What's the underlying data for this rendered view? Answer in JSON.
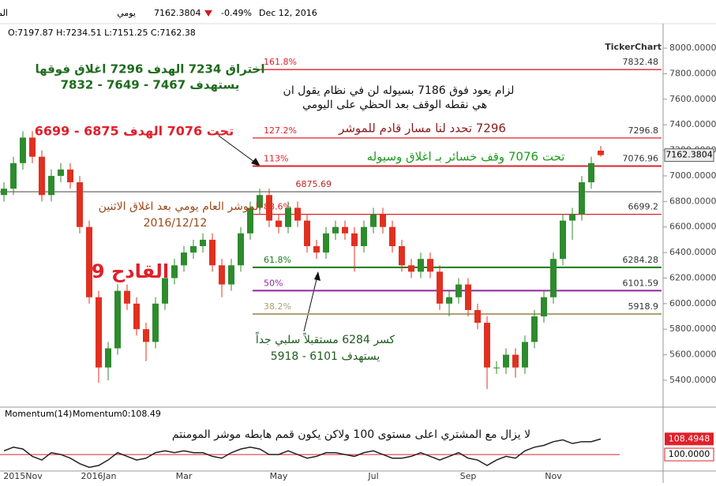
{
  "header": {
    "title": "المؤشر العام للسوق السعودي (TASI)",
    "period": "يومي",
    "last": "7162.3804",
    "change": "-0.49%",
    "date": "Dec 12, 2016",
    "ohlc": "O:7197.87 H:7234.51 L:7151.25 C:7162.38"
  },
  "brand": "TickerChart",
  "chart_data": [
    {
      "type": "candlestick",
      "categories": [
        null,
        null,
        "2015Nov",
        null,
        null,
        null,
        null,
        null,
        null,
        null,
        "2016Jan",
        null,
        null,
        null,
        null,
        null,
        null,
        null,
        null,
        "Mar",
        null,
        null,
        null,
        null,
        null,
        null,
        null,
        null,
        null,
        "May",
        null,
        null,
        null,
        null,
        null,
        null,
        null,
        null,
        null,
        "Jul",
        null,
        null,
        null,
        null,
        null,
        null,
        null,
        null,
        null,
        "Sep",
        null,
        null,
        null,
        null,
        null,
        null,
        null,
        null,
        "Nov",
        null,
        null,
        null,
        null,
        null
      ],
      "open": [
        6850,
        6900,
        7100,
        7300,
        7150,
        6850,
        7000,
        7050,
        6950,
        6600,
        6050,
        5500,
        5650,
        6100,
        6000,
        5800,
        5700,
        6000,
        6200,
        6300,
        6400,
        6450,
        6500,
        6300,
        6150,
        6300,
        6550,
        6750,
        6850,
        6650,
        6600,
        6750,
        6650,
        6450,
        6400,
        6550,
        6600,
        6550,
        6450,
        6600,
        6700,
        6600,
        6450,
        6300,
        6250,
        6350,
        6250,
        6000,
        6050,
        6150,
        5950,
        5850,
        5500,
        5500,
        5600,
        5500,
        5700,
        5900,
        6050,
        6350,
        6650,
        6700,
        6950,
        7197.87
      ],
      "high": [
        6950,
        7150,
        7350,
        7350,
        7200,
        7050,
        7100,
        7100,
        7000,
        6650,
        6100,
        5700,
        6150,
        6150,
        6050,
        5850,
        6050,
        6250,
        6350,
        6450,
        6500,
        6550,
        6550,
        6350,
        6350,
        6600,
        6800,
        6900,
        6900,
        6700,
        6800,
        6800,
        6700,
        6500,
        6600,
        6650,
        6650,
        6600,
        6650,
        6750,
        6750,
        6650,
        6500,
        6350,
        6400,
        6400,
        6300,
        6100,
        6200,
        6200,
        6000,
        5900,
        5550,
        5650,
        5650,
        5750,
        5950,
        6100,
        6400,
        6700,
        6750,
        7000,
        7150,
        7234.51
      ],
      "low": [
        6800,
        6850,
        7050,
        7100,
        6800,
        6800,
        6950,
        6900,
        6550,
        6000,
        5380,
        5400,
        5600,
        5950,
        5750,
        5550,
        5650,
        5950,
        6150,
        6250,
        6350,
        6400,
        6250,
        6050,
        6100,
        6250,
        6500,
        6700,
        6600,
        6550,
        6550,
        6600,
        6400,
        6350,
        6350,
        6500,
        6500,
        6250,
        6400,
        6550,
        6550,
        6400,
        6250,
        6200,
        6200,
        6200,
        5950,
        5900,
        6000,
        5900,
        5800,
        5330,
        5450,
        5450,
        5420,
        5450,
        5650,
        5850,
        6000,
        6300,
        6500,
        6650,
        6900,
        7151.25
      ],
      "close": [
        6900,
        7100,
        7300,
        7150,
        6850,
        7000,
        7050,
        6950,
        6600,
        6050,
        5500,
        5650,
        6100,
        6000,
        5800,
        5700,
        6000,
        6200,
        6300,
        6400,
        6450,
        6500,
        6300,
        6150,
        6300,
        6550,
        6750,
        6850,
        6650,
        6600,
        6750,
        6650,
        6450,
        6400,
        6550,
        6600,
        6550,
        6450,
        6600,
        6700,
        6600,
        6450,
        6300,
        6250,
        6350,
        6250,
        6000,
        6050,
        6150,
        5950,
        5850,
        5500,
        5500,
        5600,
        5500,
        5700,
        5900,
        6050,
        6350,
        6650,
        6700,
        6950,
        7100,
        7162.38
      ],
      "up_color": "#2e8b2e",
      "down_color": "#e03020",
      "ylim": [
        5196,
        8130
      ],
      "yticks": [
        {
          "value": 5400,
          "label": "5400.0000"
        },
        {
          "value": 5600,
          "label": "5600.0000"
        },
        {
          "value": 5800,
          "label": "5800.0000"
        },
        {
          "value": 6000,
          "label": "6000.0000"
        },
        {
          "value": 6200,
          "label": "6200.0000"
        },
        {
          "value": 6400,
          "label": "6400.0000"
        },
        {
          "value": 6600,
          "label": "6600.0000"
        },
        {
          "value": 6800,
          "label": "6800.0000"
        },
        {
          "value": 7000,
          "label": "7000.0000"
        },
        {
          "value": 7200,
          "label": "7200.0000"
        },
        {
          "value": 7400,
          "label": "7400.0000"
        },
        {
          "value": 7600,
          "label": "7600.0000"
        },
        {
          "value": 7800,
          "label": "7800.0000"
        },
        {
          "value": 8000,
          "label": "8000.0000"
        }
      ],
      "price_tag": {
        "value": 7162.3804,
        "label": "7162.3804"
      },
      "levels": [
        {
          "name": "161.8%",
          "value": 7832.48,
          "label": "7832.48",
          "color": "#e0202a"
        },
        {
          "name": "127.2%",
          "value": 7296.8,
          "label": "7296.8",
          "color": "#e0202a"
        },
        {
          "name": "113%",
          "value": 7076.96,
          "label": "7076.96",
          "color": "#e0202a"
        },
        {
          "value": 6875.69,
          "label": "6875.69",
          "color": "#777777"
        },
        {
          "name": "88.6%",
          "value": 6699.2,
          "label": "6699.2",
          "color": "#e0202a"
        },
        {
          "name": "61.8%",
          "value": 6284.28,
          "label": "6284.28",
          "color": "#1a7a1a"
        },
        {
          "name": "50%",
          "value": 6101.59,
          "label": "6101.59",
          "color": "#8a2b9a"
        },
        {
          "name": "38.2%",
          "value": 5918.9,
          "label": "5918.9",
          "color": "#b0a070"
        }
      ],
      "annotations": [
        "اختراق 7234 الهدف 7296 اغلاق فوقها",
        "يستهدف 7467 - 7649 - 7832",
        "لزام يعود فوق 7186 بسيوله لن في نظام يقول ان",
        "هي نقطه الوقف بعد الحظي على اليومي",
        "تحت 7076 الهدف 6875 - 6699",
        "7296 تحدد لنا مسار قادم للموشر",
        "تحت 7076 وقف خسائر بـ اغلاق وسيوله",
        "الموشر العام يومي بعد اغلاق الاثنين",
        "2016/12/12",
        "القادح 9",
        "كسر 6284 مستقبلاً سلبي جداً",
        "يستهدف 6101 - 5918"
      ]
    },
    {
      "type": "line",
      "title": "Momentum(14)",
      "subtitle": "Momentum0:108.49",
      "values": [
        102,
        104,
        103,
        99,
        97,
        101,
        100,
        98,
        95,
        93,
        94,
        97,
        101,
        99,
        97,
        98,
        101,
        102,
        101,
        102,
        101,
        101,
        99,
        98,
        101,
        103,
        104,
        103,
        100,
        100,
        102,
        100,
        98,
        99,
        101,
        101,
        100,
        99,
        101,
        102,
        100,
        98,
        98,
        99,
        101,
        99,
        97,
        99,
        101,
        98,
        97,
        94,
        97,
        99,
        98,
        102,
        104,
        105,
        107,
        108,
        106,
        107,
        107,
        108.49
      ],
      "color": "#222222",
      "ylim": [
        91,
        125
      ],
      "reference": {
        "value": 100,
        "label": "100.0000",
        "color": "#e0202a"
      },
      "last_label": {
        "value": 108.4948,
        "label": "108.4948"
      },
      "annotation": "لا يزال مع المشتري اعلى مستوى 100 ولاكن يكون قمم هابطه موشر المومنتم"
    }
  ]
}
